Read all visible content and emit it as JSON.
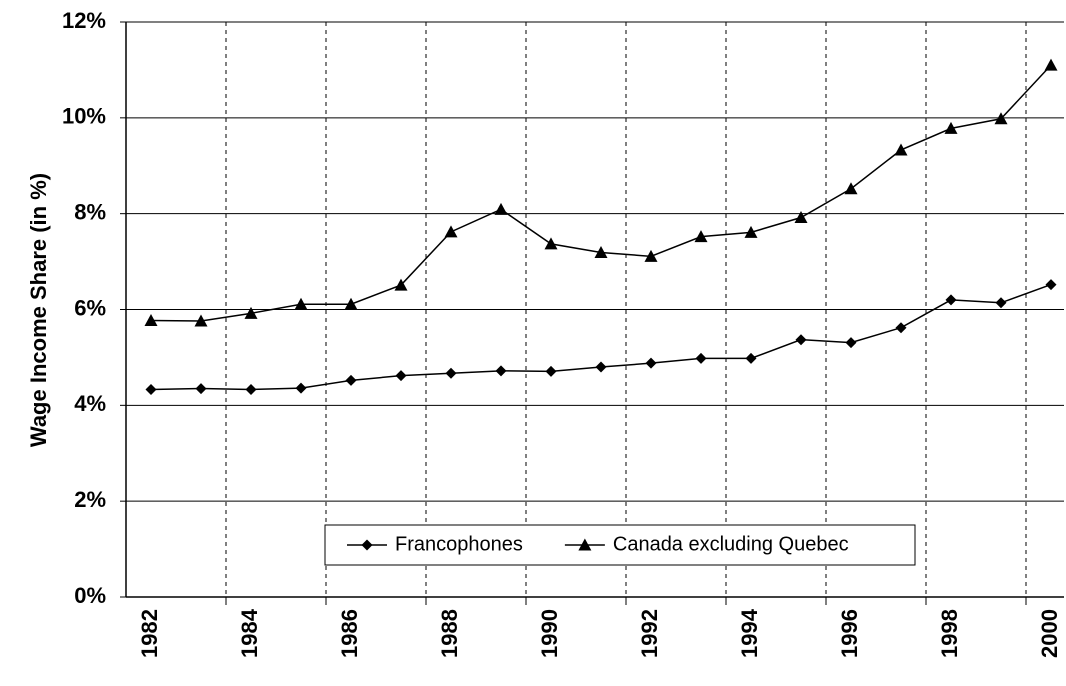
{
  "chart_data": {
    "type": "line",
    "y_label": "Wage Income Share (in %)",
    "categories": [
      "1982",
      null,
      "1984",
      null,
      "1986",
      null,
      "1988",
      null,
      "1990",
      null,
      "1992",
      null,
      "1994",
      null,
      "1996",
      null,
      "1998",
      null,
      "2000"
    ],
    "series": [
      {
        "name": "Francophones",
        "color": "#000000",
        "marker": "diamond",
        "values": [
          4.33,
          4.35,
          4.33,
          4.36,
          4.52,
          4.62,
          4.67,
          4.72,
          4.71,
          4.8,
          4.88,
          4.98,
          4.98,
          5.37,
          5.31,
          5.62,
          6.2,
          6.14,
          6.52
        ]
      },
      {
        "name": "Canada excluding Quebec",
        "color": "#000000",
        "marker": "triangle",
        "values": [
          5.77,
          5.76,
          5.92,
          6.11,
          6.11,
          6.51,
          7.62,
          8.09,
          7.37,
          7.19,
          7.11,
          7.52,
          7.61,
          7.92,
          8.52,
          9.33,
          9.78,
          9.98,
          11.1
        ]
      }
    ],
    "ylim": [
      0,
      12
    ],
    "yticks": [
      {
        "value": 0,
        "label": "0%"
      },
      {
        "value": 2,
        "label": "2%"
      },
      {
        "value": 4,
        "label": "4%"
      },
      {
        "value": 6,
        "label": "6%"
      },
      {
        "value": 8,
        "label": "8%"
      },
      {
        "value": 10,
        "label": "10%"
      },
      {
        "value": 12,
        "label": "12%"
      }
    ],
    "grid": true,
    "legend": "bottom"
  }
}
